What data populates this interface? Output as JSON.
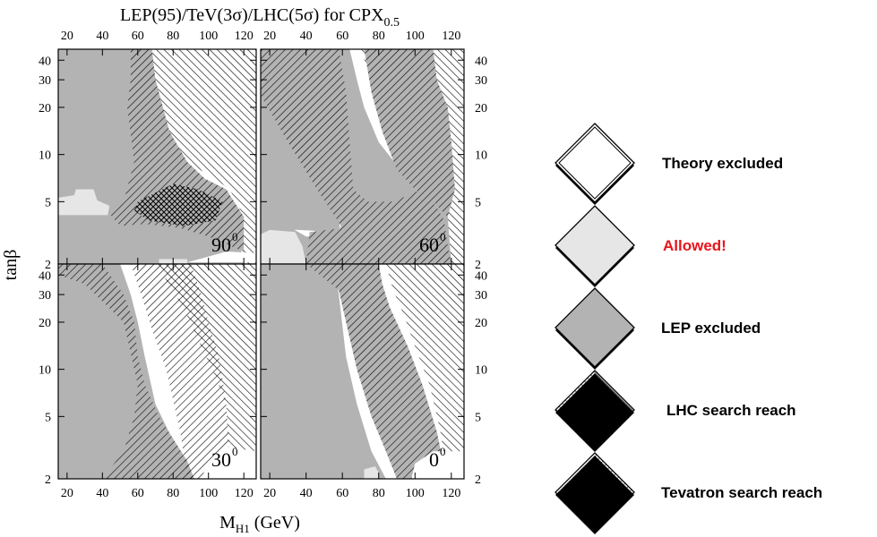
{
  "figure": {
    "title": {
      "main": "LEP(95)/TeV(3σ)/LHC(5σ) for CPX",
      "subscript": "0.5"
    },
    "xlabel": {
      "main": "M",
      "subscript": "H1",
      "unit": " (GeV)"
    },
    "ylabel": "tanβ"
  },
  "chart_data": {
    "type": "heatmap",
    "x_axis": {
      "ticks": [
        20,
        40,
        60,
        80,
        100,
        120
      ],
      "range": [
        15,
        127
      ]
    },
    "y_axis": {
      "ticks": [
        2,
        5,
        10,
        20,
        30,
        40
      ],
      "scale": "log",
      "range": [
        2,
        47
      ]
    },
    "panels": [
      {
        "id": "phase-90",
        "label": "90",
        "superscript": "0",
        "position": "top-left"
      },
      {
        "id": "phase-60",
        "label": "60",
        "superscript": "0",
        "position": "top-right"
      },
      {
        "id": "phase-30",
        "label": "30",
        "superscript": "0",
        "position": "bottom-left"
      },
      {
        "id": "phase-0",
        "label": "0",
        "superscript": "0",
        "position": "bottom-right"
      }
    ],
    "legend": {
      "placement": "right",
      "entries": [
        {
          "label": "Theory excluded",
          "style": "white",
          "color": "#000000"
        },
        {
          "label": "Allowed!",
          "style": "light",
          "color": "#e8141b"
        },
        {
          "label": "LEP excluded",
          "style": "gray",
          "color": "#000000"
        },
        {
          "label": "LHC search reach",
          "style": "hatch-up",
          "color": "#000000"
        },
        {
          "label": "Tevatron search reach",
          "style": "hatch-down",
          "color": "#000000"
        }
      ]
    },
    "colors": {
      "allowed": "#e6e6e6",
      "lep_excluded": "#b3b3b3",
      "theory_excluded": "#ffffff"
    }
  }
}
